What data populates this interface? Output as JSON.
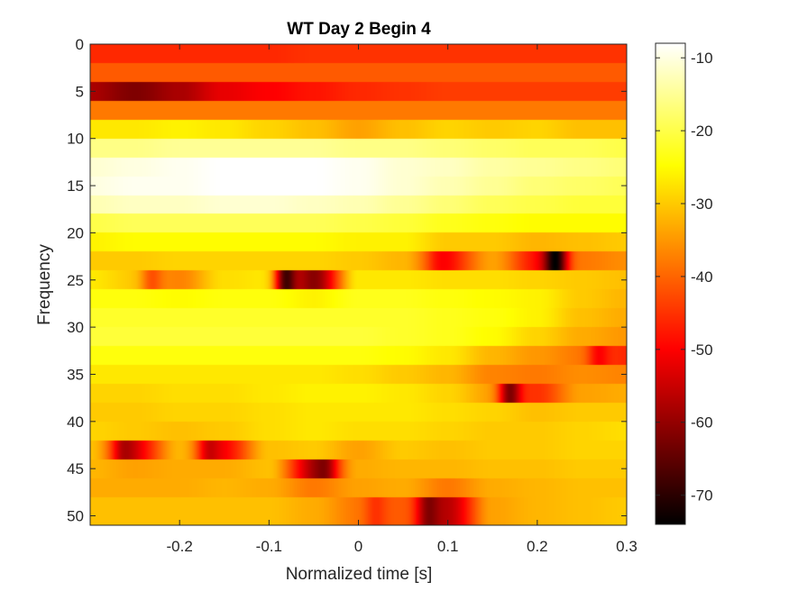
{
  "chart_data": {
    "type": "heatmap",
    "title": "WT Day 2 Begin 4",
    "xlabel": "Normalized time [s]",
    "ylabel": "Frequency",
    "xlim": [
      -0.3,
      0.3
    ],
    "ylim": [
      0,
      51
    ],
    "y_reversed": true,
    "x_ticks": [
      -0.2,
      -0.1,
      0,
      0.1,
      0.2,
      0.3
    ],
    "x_tick_labels": [
      "-0.2",
      "-0.1",
      "0",
      "0.1",
      "0.2",
      "0.3"
    ],
    "y_ticks": [
      0,
      5,
      10,
      15,
      20,
      25,
      30,
      35,
      40,
      45,
      50
    ],
    "y_tick_labels": [
      "0",
      "5",
      "10",
      "15",
      "20",
      "25",
      "30",
      "35",
      "40",
      "45",
      "50"
    ],
    "colormap": "hot",
    "colorbar": {
      "clim": [
        -74,
        -8
      ],
      "ticks": [
        -10,
        -20,
        -30,
        -40,
        -50,
        -60,
        -70
      ],
      "tick_labels": [
        "-10",
        "-20",
        "-30",
        "-40",
        "-50",
        "-60",
        "-70"
      ]
    },
    "frequency_bin_width": 2,
    "frequency_bins": [
      1,
      3,
      5,
      7,
      9,
      11,
      13,
      15,
      17,
      19,
      21,
      23,
      25,
      27,
      29,
      31,
      33,
      35,
      37,
      39,
      41,
      43,
      45,
      47,
      49
    ],
    "time_points": [
      -0.3,
      -0.25,
      -0.2,
      -0.15,
      -0.1,
      -0.05,
      0,
      0.05,
      0.1,
      0.15,
      0.2,
      0.25,
      0.3
    ],
    "values": [
      [
        -46,
        -46,
        -46,
        -46,
        -46,
        -45,
        -45,
        -45,
        -45,
        -45,
        -45,
        -45,
        -45
      ],
      [
        -41,
        -41,
        -41,
        -41,
        -41,
        -41,
        -41,
        -41,
        -41,
        -41,
        -41,
        -41,
        -41
      ],
      [
        -58,
        -62,
        -58,
        -52,
        -50,
        -48,
        -46,
        -45,
        -44,
        -44,
        -44,
        -44,
        -44
      ],
      [
        -38,
        -38,
        -38,
        -38,
        -38,
        -38,
        -38,
        -38,
        -38,
        -38,
        -38,
        -38,
        -38
      ],
      [
        -27,
        -27,
        -26,
        -27,
        -29,
        -31,
        -34,
        -31,
        -29,
        -30,
        -29,
        -31,
        -31
      ],
      [
        -16,
        -16,
        -15,
        -15,
        -15,
        -15,
        -16,
        -16,
        -17,
        -18,
        -19,
        -19,
        -20
      ],
      [
        -11,
        -10,
        -9,
        -8,
        -8,
        -8,
        -9,
        -11,
        -12,
        -14,
        -15,
        -16,
        -17
      ],
      [
        -10,
        -9,
        -9,
        -8,
        -8,
        -8,
        -9,
        -11,
        -13,
        -15,
        -17,
        -18,
        -19
      ],
      [
        -13,
        -12,
        -12,
        -11,
        -11,
        -12,
        -13,
        -15,
        -17,
        -19,
        -20,
        -21,
        -21
      ],
      [
        -20,
        -19,
        -19,
        -19,
        -19,
        -19,
        -20,
        -21,
        -23,
        -24,
        -25,
        -25,
        -25
      ],
      [
        -26,
        -25,
        -25,
        -25,
        -25,
        -25,
        -26,
        -26,
        -30,
        -30,
        -32,
        -31,
        -30
      ],
      [
        -30,
        -30,
        -29,
        -29,
        -29,
        -29,
        -30,
        -32,
        -47,
        -34,
        -48,
        -38,
        -36
      ],
      [
        -27,
        -30,
        -37,
        -28,
        -27,
        -61,
        -27,
        -27,
        -28,
        -28,
        -29,
        -30,
        -31
      ],
      [
        -24,
        -24,
        -25,
        -24,
        -24,
        -26,
        -23,
        -23,
        -24,
        -25,
        -26,
        -30,
        -32
      ],
      [
        -22,
        -22,
        -22,
        -22,
        -22,
        -22,
        -22,
        -22,
        -23,
        -24,
        -26,
        -31,
        -33
      ],
      [
        -21,
        -21,
        -21,
        -21,
        -21,
        -21,
        -21,
        -22,
        -23,
        -25,
        -29,
        -33,
        -35
      ],
      [
        -24,
        -24,
        -24,
        -24,
        -24,
        -24,
        -24,
        -25,
        -27,
        -32,
        -35,
        -38,
        -46
      ],
      [
        -27,
        -27,
        -27,
        -27,
        -27,
        -27,
        -28,
        -30,
        -32,
        -37,
        -38,
        -36,
        -37
      ],
      [
        -29,
        -29,
        -28,
        -28,
        -27,
        -26,
        -26,
        -27,
        -29,
        -34,
        -45,
        -34,
        -33
      ],
      [
        -30,
        -30,
        -29,
        -29,
        -28,
        -27,
        -27,
        -27,
        -28,
        -29,
        -31,
        -30,
        -30
      ],
      [
        -29,
        -30,
        -31,
        -30,
        -28,
        -27,
        -28,
        -28,
        -29,
        -30,
        -30,
        -29,
        -28
      ],
      [
        -31,
        -51,
        -32,
        -49,
        -31,
        -30,
        -34,
        -30,
        -31,
        -30,
        -30,
        -29,
        -29
      ],
      [
        -32,
        -34,
        -33,
        -33,
        -31,
        -55,
        -33,
        -32,
        -32,
        -31,
        -31,
        -30,
        -30
      ],
      [
        -33,
        -33,
        -33,
        -32,
        -33,
        -38,
        -34,
        -33,
        -38,
        -33,
        -32,
        -31,
        -31
      ],
      [
        -31,
        -31,
        -31,
        -31,
        -31,
        -33,
        -38,
        -41,
        -56,
        -34,
        -32,
        -31,
        -30
      ]
    ],
    "notes_hotspots": [
      {
        "t": -0.08,
        "f": 25,
        "v": -68
      },
      {
        "t": 0.22,
        "f": 23,
        "v": -74
      },
      {
        "t": 0.095,
        "f": 23,
        "v": -50
      },
      {
        "t": 0.17,
        "f": 37,
        "v": -62
      },
      {
        "t": 0.27,
        "f": 33,
        "v": -50
      },
      {
        "t": -0.26,
        "f": 43,
        "v": -58
      },
      {
        "t": -0.165,
        "f": 43,
        "v": -55
      },
      {
        "t": -0.04,
        "f": 45,
        "v": -62
      },
      {
        "t": 0.08,
        "f": 49,
        "v": -62
      },
      {
        "t": 0.02,
        "f": 49,
        "v": -45
      },
      {
        "t": -0.23,
        "f": 25,
        "v": -42
      }
    ],
    "grid": false,
    "legend": "colorbar-right"
  }
}
